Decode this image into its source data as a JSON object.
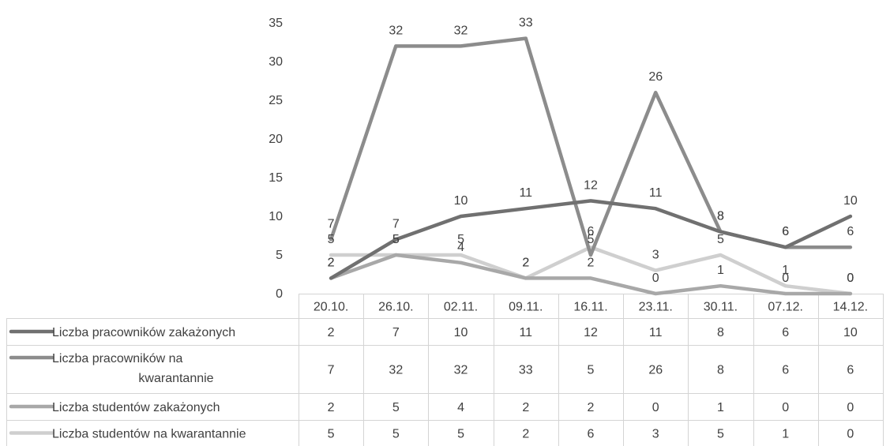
{
  "chart_data": {
    "type": "line",
    "title": "",
    "xlabel": "",
    "ylabel": "",
    "ylim": [
      0,
      35
    ],
    "yticks": [
      0,
      5,
      10,
      15,
      20,
      25,
      30,
      35
    ],
    "grid": false,
    "legend": "data-table",
    "categories": [
      "20.10.",
      "26.10.",
      "02.11.",
      "09.11.",
      "16.11.",
      "23.11.",
      "30.11.",
      "07.12.",
      "14.12."
    ],
    "series": [
      {
        "name": "Liczba pracowników zakażonych",
        "name_lines": [
          "Liczba pracowników zakażonych"
        ],
        "color": "#707070",
        "values": [
          2,
          7,
          10,
          11,
          12,
          11,
          8,
          6,
          10
        ]
      },
      {
        "name": "Liczba pracowników na kwarantannie",
        "name_lines": [
          "Liczba pracowników na",
          "kwarantannie"
        ],
        "color": "#8c8c8c",
        "values": [
          7,
          32,
          32,
          33,
          5,
          26,
          8,
          6,
          6
        ]
      },
      {
        "name": "Liczba studentów zakażonych",
        "name_lines": [
          "Liczba studentów zakażonych"
        ],
        "color": "#a8a8a8",
        "values": [
          2,
          5,
          4,
          2,
          2,
          0,
          1,
          0,
          0
        ]
      },
      {
        "name": "Liczba studentów na kwarantannie",
        "name_lines": [
          "Liczba studentów na kwarantannie"
        ],
        "color": "#cfcfcf",
        "values": [
          5,
          5,
          5,
          2,
          6,
          3,
          5,
          1,
          0
        ]
      }
    ]
  }
}
